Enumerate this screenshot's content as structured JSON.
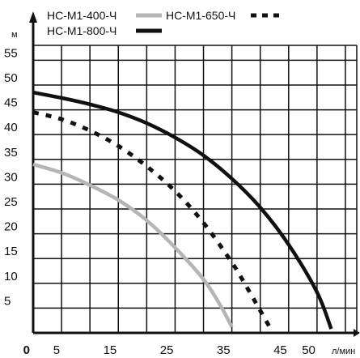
{
  "chart_data": {
    "type": "line",
    "ylabel": "м",
    "xlabel": "л/мин",
    "x_tick_labels": [
      "0",
      "5",
      "15",
      "25",
      "35",
      "45",
      "50"
    ],
    "y_tick_labels": [
      "5",
      "10",
      "15",
      "20",
      "25",
      "30",
      "35",
      "40",
      "45",
      "50",
      "55"
    ],
    "xlim": [
      0,
      57
    ],
    "ylim": [
      0,
      58
    ],
    "grid": true,
    "legend_position": "top",
    "series": [
      {
        "name": "НС-М1-400-Ч",
        "color": "#b5b5b5",
        "style": "solid",
        "x": [
          0,
          5,
          10,
          15,
          20,
          25,
          30,
          33,
          35
        ],
        "y": [
          34,
          32.3,
          29.8,
          26.8,
          22.7,
          17.2,
          10.8,
          5.5,
          1.2
        ]
      },
      {
        "name": "НС-М1-650-Ч",
        "color": "#111111",
        "style": "dotted",
        "x": [
          0,
          5,
          10,
          15,
          20,
          25,
          30,
          35,
          38,
          40,
          42
        ],
        "y": [
          44.5,
          43.1,
          40.8,
          37.7,
          33.6,
          28.6,
          22.2,
          14.2,
          8.5,
          4.5,
          0.5
        ]
      },
      {
        "name": "НС-М1-800-Ч",
        "color": "#111111",
        "style": "solid",
        "x": [
          0,
          5,
          10,
          15,
          20,
          25,
          30,
          35,
          40,
          45,
          50,
          52.5
        ],
        "y": [
          48.5,
          47.4,
          46.1,
          44.5,
          42.3,
          39.4,
          35.8,
          31.1,
          25.3,
          17.8,
          8.2,
          0.8
        ]
      }
    ]
  }
}
